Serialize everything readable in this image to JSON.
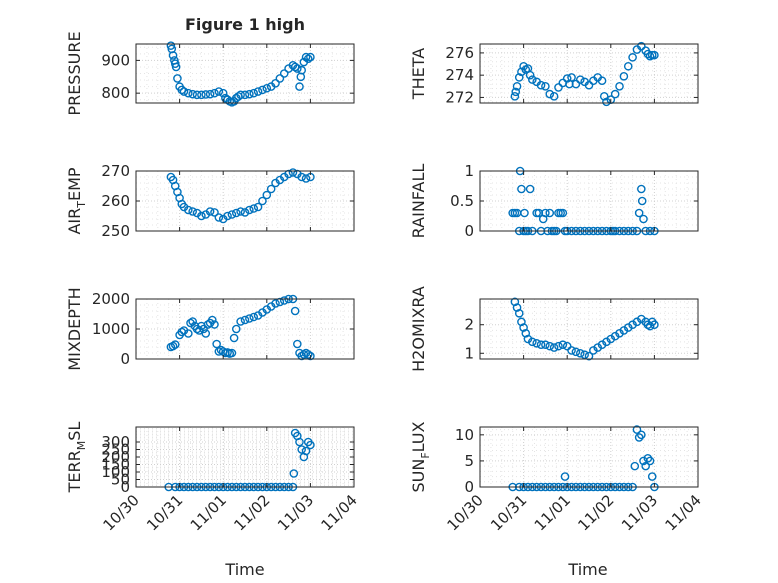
{
  "figure": {
    "title": "Figure 1 high",
    "marker_color": "#0072BD",
    "grid": true,
    "grid_style": "dotted-major-minor"
  },
  "time_axis": {
    "ticks": [
      "10/30",
      "10/31",
      "11/01",
      "11/02",
      "11/03",
      "11/04"
    ],
    "xlabel": "Time"
  },
  "chart_data": [
    {
      "id": "pressure",
      "type": "scatter",
      "title": "Figure 1 high",
      "ylabel": "PRESSURE",
      "xlim": [
        30.0,
        35.0
      ],
      "ylim": [
        770,
        950
      ],
      "yticks": [
        800,
        900
      ],
      "show_xtick_labels": false,
      "x": [
        30.8,
        30.82,
        30.85,
        30.88,
        30.9,
        30.92,
        30.95,
        31.0,
        31.05,
        31.1,
        31.2,
        31.3,
        31.4,
        31.5,
        31.6,
        31.7,
        31.8,
        31.9,
        32.0,
        32.05,
        32.1,
        32.15,
        32.2,
        32.25,
        32.3,
        32.35,
        32.4,
        32.5,
        32.6,
        32.7,
        32.8,
        32.9,
        33.0,
        33.1,
        33.2,
        33.3,
        33.4,
        33.5,
        33.6,
        33.65,
        33.7,
        33.75,
        33.78,
        33.8,
        33.85,
        33.9,
        33.95,
        34.0
      ],
      "y": [
        945,
        935,
        915,
        900,
        890,
        880,
        845,
        820,
        810,
        805,
        800,
        797,
        795,
        795,
        796,
        797,
        800,
        805,
        800,
        785,
        780,
        775,
        772,
        775,
        785,
        790,
        795,
        795,
        797,
        800,
        805,
        810,
        815,
        820,
        830,
        845,
        860,
        875,
        885,
        880,
        875,
        820,
        850,
        870,
        895,
        910,
        905,
        910
      ]
    },
    {
      "id": "theta",
      "type": "scatter",
      "ylabel": "THETA",
      "xlim": [
        30.0,
        35.0
      ],
      "ylim": [
        271.5,
        276.8
      ],
      "yticks": [
        272,
        274,
        276
      ],
      "show_xtick_labels": false,
      "x": [
        30.8,
        30.82,
        30.85,
        30.9,
        30.95,
        31.0,
        31.05,
        31.1,
        31.15,
        31.2,
        31.3,
        31.4,
        31.5,
        31.6,
        31.7,
        31.8,
        31.9,
        32.0,
        32.05,
        32.1,
        32.2,
        32.3,
        32.4,
        32.5,
        32.6,
        32.7,
        32.8,
        32.85,
        32.9,
        33.0,
        33.1,
        33.2,
        33.3,
        33.4,
        33.5,
        33.6,
        33.7,
        33.8,
        33.85,
        33.9,
        33.95,
        34.0
      ],
      "y": [
        272.1,
        272.5,
        273.0,
        273.8,
        274.3,
        274.8,
        274.5,
        274.6,
        274.0,
        273.6,
        273.4,
        273.1,
        273.0,
        272.3,
        272.1,
        272.9,
        273.3,
        273.7,
        273.2,
        273.8,
        273.2,
        273.6,
        273.4,
        273.1,
        273.5,
        273.8,
        273.5,
        272.1,
        271.6,
        271.8,
        272.3,
        273.0,
        273.9,
        274.8,
        275.6,
        276.3,
        276.6,
        276.2,
        275.9,
        275.7,
        275.8,
        275.8
      ]
    },
    {
      "id": "air_temp",
      "type": "scatter",
      "ylabel": "AIR_TEMP",
      "xlim": [
        30.0,
        35.0
      ],
      "ylim": [
        250,
        270
      ],
      "yticks": [
        250,
        260,
        270
      ],
      "show_xtick_labels": false,
      "x": [
        30.8,
        30.85,
        30.9,
        30.95,
        31.0,
        31.05,
        31.1,
        31.2,
        31.3,
        31.4,
        31.5,
        31.6,
        31.7,
        31.8,
        31.9,
        32.0,
        32.1,
        32.2,
        32.3,
        32.4,
        32.5,
        32.6,
        32.7,
        32.8,
        32.9,
        33.0,
        33.1,
        33.2,
        33.3,
        33.4,
        33.5,
        33.6,
        33.7,
        33.8,
        33.9,
        34.0
      ],
      "y": [
        268,
        267,
        265,
        263,
        261,
        259,
        258,
        257,
        256.5,
        256,
        255,
        255.5,
        256.5,
        256.2,
        254.5,
        254,
        255,
        255.5,
        256,
        256.5,
        256.2,
        257,
        257.5,
        258,
        260,
        262,
        264,
        266,
        267,
        268,
        269,
        269.5,
        269,
        268,
        267.5,
        268
      ]
    },
    {
      "id": "rainfall",
      "type": "scatter",
      "ylabel": "RAINFALL",
      "xlim": [
        30.0,
        35.0
      ],
      "ylim": [
        0,
        1
      ],
      "yticks": [
        0,
        0.5,
        1
      ],
      "show_xtick_labels": false,
      "x": [
        30.75,
        30.8,
        30.85,
        30.9,
        30.92,
        30.95,
        31.0,
        31.02,
        31.05,
        31.1,
        31.15,
        31.2,
        31.3,
        31.35,
        31.4,
        31.45,
        31.5,
        31.55,
        31.6,
        31.65,
        31.7,
        31.75,
        31.8,
        31.85,
        31.9,
        31.95,
        32.0,
        32.1,
        32.2,
        32.3,
        32.4,
        32.5,
        32.6,
        32.7,
        32.8,
        32.9,
        33.0,
        33.05,
        33.1,
        33.2,
        33.3,
        33.4,
        33.5,
        33.6,
        33.65,
        33.7,
        33.72,
        33.75,
        33.8,
        33.9,
        34.0
      ],
      "y": [
        0.3,
        0.3,
        0.3,
        0,
        1.0,
        0.7,
        0,
        0.3,
        0,
        0,
        0.7,
        0,
        0.3,
        0.3,
        0,
        0.2,
        0.3,
        0,
        0.3,
        0,
        0,
        0,
        0.3,
        0.3,
        0.3,
        0,
        0,
        0,
        0,
        0,
        0,
        0,
        0,
        0,
        0,
        0,
        0,
        0,
        0,
        0,
        0,
        0,
        0,
        0,
        0.3,
        0.7,
        0.5,
        0.2,
        0,
        0,
        0
      ]
    },
    {
      "id": "mixdepth",
      "type": "scatter",
      "ylabel": "MIXDEPTH",
      "xlim": [
        30.0,
        35.0
      ],
      "ylim": [
        0,
        2000
      ],
      "yticks": [
        0,
        1000,
        2000
      ],
      "show_xtick_labels": false,
      "x": [
        30.8,
        30.85,
        30.9,
        31.0,
        31.05,
        31.1,
        31.2,
        31.25,
        31.3,
        31.35,
        31.4,
        31.45,
        31.5,
        31.55,
        31.6,
        31.65,
        31.7,
        31.75,
        31.8,
        31.85,
        31.9,
        31.95,
        32.0,
        32.05,
        32.1,
        32.15,
        32.2,
        32.25,
        32.3,
        32.4,
        32.5,
        32.6,
        32.7,
        32.8,
        32.9,
        33.0,
        33.1,
        33.2,
        33.3,
        33.4,
        33.5,
        33.6,
        33.65,
        33.7,
        33.75,
        33.8,
        33.85,
        33.9,
        33.95,
        34.0
      ],
      "y": [
        400,
        430,
        480,
        800,
        900,
        950,
        850,
        1200,
        1250,
        1100,
        1000,
        950,
        1100,
        1000,
        850,
        1150,
        1200,
        1300,
        1150,
        500,
        250,
        300,
        250,
        200,
        220,
        180,
        200,
        700,
        1000,
        1250,
        1300,
        1350,
        1400,
        1450,
        1550,
        1650,
        1750,
        1850,
        1900,
        1950,
        2000,
        2050,
        1600,
        500,
        200,
        100,
        150,
        200,
        150,
        100
      ]
    },
    {
      "id": "h2omixra",
      "type": "scatter",
      "ylabel": "H2OMIXRA",
      "xlim": [
        30.0,
        35.0
      ],
      "ylim": [
        0.8,
        2.9
      ],
      "yticks": [
        1,
        2
      ],
      "show_xtick_labels": false,
      "x": [
        30.8,
        30.85,
        30.9,
        30.95,
        31.0,
        31.05,
        31.1,
        31.2,
        31.3,
        31.4,
        31.5,
        31.6,
        31.7,
        31.8,
        31.9,
        32.0,
        32.1,
        32.2,
        32.3,
        32.4,
        32.5,
        32.6,
        32.7,
        32.8,
        32.9,
        33.0,
        33.1,
        33.2,
        33.3,
        33.4,
        33.5,
        33.6,
        33.7,
        33.8,
        33.85,
        33.9,
        33.95,
        34.0
      ],
      "y": [
        2.8,
        2.6,
        2.4,
        2.1,
        1.9,
        1.7,
        1.5,
        1.4,
        1.35,
        1.3,
        1.3,
        1.25,
        1.2,
        1.25,
        1.3,
        1.25,
        1.1,
        1.05,
        1.0,
        0.95,
        0.9,
        1.1,
        1.2,
        1.3,
        1.4,
        1.5,
        1.6,
        1.7,
        1.8,
        1.9,
        2.0,
        2.1,
        2.2,
        2.1,
        2.0,
        1.95,
        2.1,
        2.0
      ]
    },
    {
      "id": "terr_msl",
      "type": "scatter",
      "ylabel": "TERR_MSL",
      "xlim": [
        30.0,
        35.0
      ],
      "ylim": [
        0,
        400
      ],
      "yticks": [
        0,
        50,
        100,
        150,
        200,
        250,
        300
      ],
      "show_xtick_labels": true,
      "x": [
        30.75,
        30.9,
        31.0,
        31.1,
        31.2,
        31.3,
        31.4,
        31.5,
        31.6,
        31.7,
        31.8,
        31.9,
        32.0,
        32.1,
        32.2,
        32.3,
        32.4,
        32.5,
        32.6,
        32.7,
        32.8,
        32.9,
        33.0,
        33.1,
        33.2,
        33.3,
        33.4,
        33.5,
        33.6,
        33.62,
        33.65,
        33.7,
        33.75,
        33.8,
        33.85,
        33.9,
        33.95,
        34.0
      ],
      "y": [
        0,
        0,
        0,
        0,
        0,
        0,
        0,
        0,
        0,
        0,
        0,
        0,
        0,
        0,
        0,
        0,
        0,
        0,
        0,
        0,
        0,
        0,
        0,
        0,
        0,
        0,
        0,
        0,
        0,
        90,
        360,
        340,
        300,
        250,
        200,
        240,
        300,
        280
      ]
    },
    {
      "id": "sun_flux",
      "type": "scatter",
      "ylabel": "SUN_FLUX",
      "xlim": [
        30.0,
        35.0
      ],
      "ylim": [
        0,
        11.5
      ],
      "yticks": [
        0,
        5,
        10
      ],
      "show_xtick_labels": true,
      "x": [
        30.75,
        30.9,
        31.0,
        31.1,
        31.2,
        31.3,
        31.4,
        31.5,
        31.6,
        31.7,
        31.8,
        31.9,
        31.95,
        32.0,
        32.1,
        32.2,
        32.3,
        32.4,
        32.5,
        32.6,
        32.7,
        32.8,
        32.9,
        33.0,
        33.1,
        33.2,
        33.3,
        33.4,
        33.5,
        33.55,
        33.6,
        33.65,
        33.7,
        33.75,
        33.8,
        33.85,
        33.9,
        33.95,
        34.0
      ],
      "y": [
        0,
        0,
        0,
        0,
        0,
        0,
        0,
        0,
        0,
        0,
        0,
        0,
        2,
        0,
        0,
        0,
        0,
        0,
        0,
        0,
        0,
        0,
        0,
        0,
        0,
        0,
        0,
        0,
        0,
        4,
        11,
        9.5,
        10,
        5,
        4,
        5.5,
        5,
        2,
        0
      ]
    }
  ]
}
